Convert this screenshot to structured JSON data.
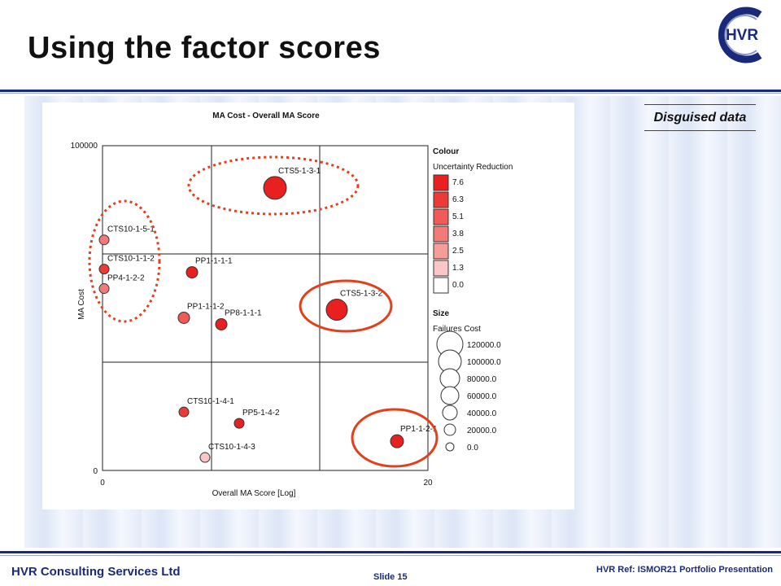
{
  "slide": {
    "title": "Using the factor scores",
    "footer_company": "HVR Consulting Services Ltd",
    "slide_number": "Slide 15",
    "reference": "HVR Ref:  ISMOR21 Portfolio Presentation",
    "annotation": "Disguised data",
    "logo_text": "HVR"
  },
  "chart_data": {
    "type": "scatter",
    "title": "MA Cost - Overall MA Score",
    "xlabel": "Overall MA Score [Log]",
    "ylabel": "MA Cost",
    "x_ticks": [
      "0",
      "20"
    ],
    "y_ticks": [
      "0",
      "100000"
    ],
    "grid": true,
    "colour_legend": {
      "heading": "Colour",
      "subheading": "Uncertainty Reduction",
      "entries": [
        {
          "label": "7.6",
          "color": "#e8201f"
        },
        {
          "label": "6.3",
          "color": "#ec3a37"
        },
        {
          "label": "5.1",
          "color": "#f05a57"
        },
        {
          "label": "3.8",
          "color": "#f47a78"
        },
        {
          "label": "2.5",
          "color": "#f89c9a"
        },
        {
          "label": "1.3",
          "color": "#fbc7c6"
        },
        {
          "label": "0.0",
          "color": "#ffffff"
        }
      ]
    },
    "size_legend": {
      "heading": "Size",
      "subheading": "Failures Cost",
      "entries": [
        "120000.0",
        "100000.0",
        "80000.0",
        "60000.0",
        "40000.0",
        "20000.0",
        "0.0"
      ]
    },
    "points": [
      {
        "label": "CTS5-1-3-1",
        "x": 10.6,
        "y": 87000,
        "color": "#e8201f"
      },
      {
        "label": "CTS10-1-5-1",
        "x": 0.1,
        "y": 71000,
        "color": "#f47a78"
      },
      {
        "label": "CTS10-1-1-2",
        "x": 0.1,
        "y": 62000,
        "color": "#ec3a37"
      },
      {
        "label": "PP4-1-2-2",
        "x": 0.1,
        "y": 56000,
        "color": "#f47a78"
      },
      {
        "label": "PP1-1-1-1",
        "x": 5.5,
        "y": 61000,
        "color": "#e8201f"
      },
      {
        "label": "PP1-1-1-2",
        "x": 5.0,
        "y": 47000,
        "color": "#f05a57"
      },
      {
        "label": "PP8-1-1-1",
        "x": 7.3,
        "y": 45000,
        "color": "#e8201f"
      },
      {
        "label": "CTS5-1-3-2",
        "x": 14.4,
        "y": 49500,
        "color": "#e8201f"
      },
      {
        "label": "CTS10-1-4-1",
        "x": 5.0,
        "y": 18000,
        "color": "#ec3a37"
      },
      {
        "label": "PP5-1-4-2",
        "x": 8.4,
        "y": 14500,
        "color": "#e8201f"
      },
      {
        "label": "PP1-1-2-1",
        "x": 18.1,
        "y": 9000,
        "color": "#e8201f"
      },
      {
        "label": "CTS10-1-4-3",
        "x": 6.3,
        "y": 4000,
        "color": "#fbc7c6"
      }
    ]
  }
}
